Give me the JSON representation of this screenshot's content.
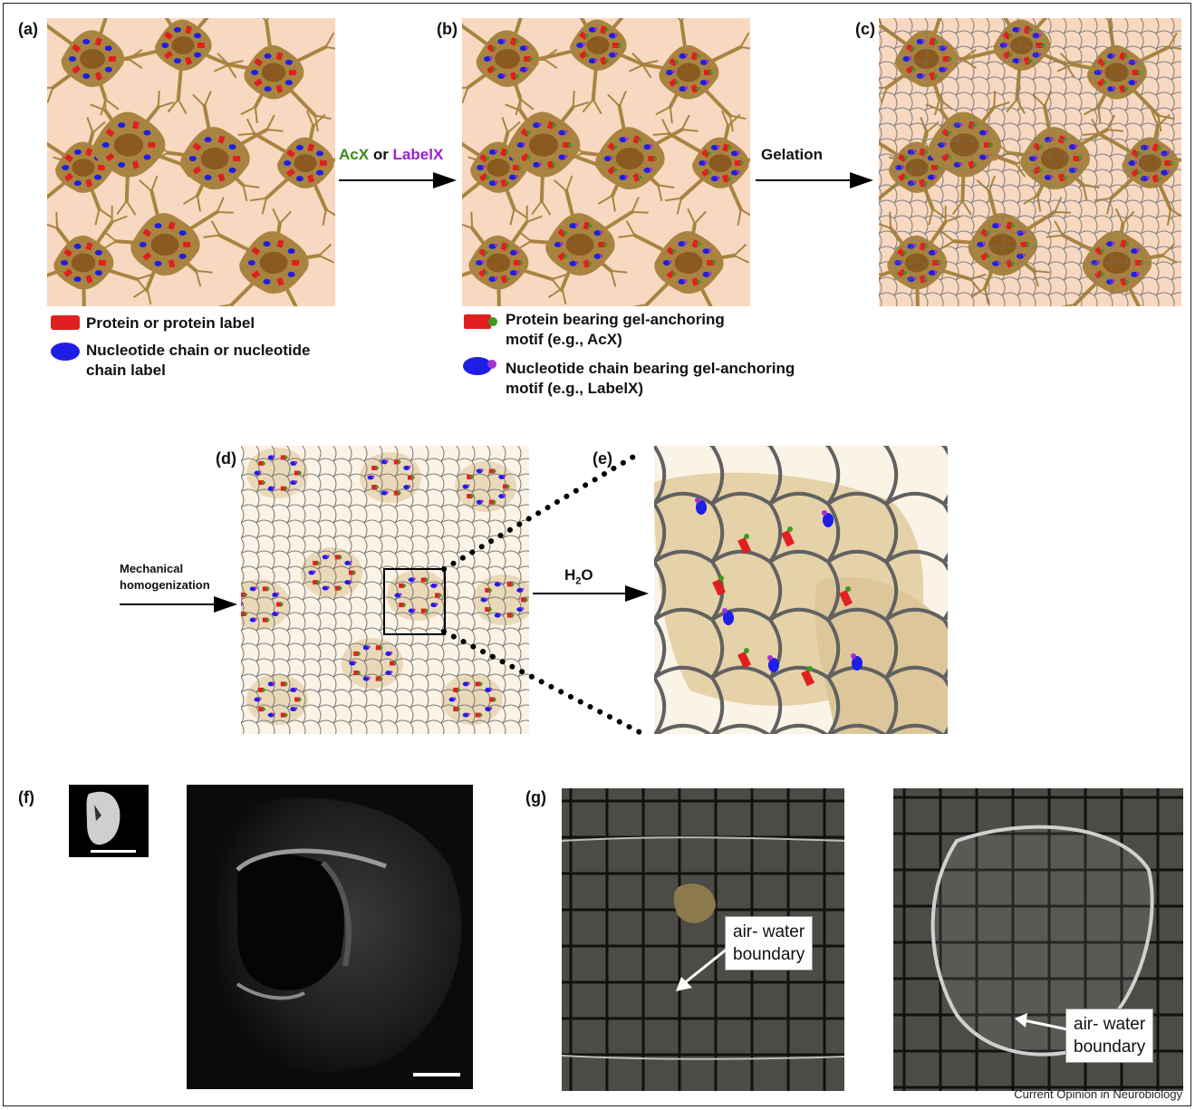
{
  "panels": {
    "a": "(a)",
    "b": "(b)",
    "c": "(c)",
    "d": "(d)",
    "e": "(e)",
    "f": "(f)",
    "g": "(g)"
  },
  "arrows": {
    "ab_part1": "AcX",
    "ab_part2": "or",
    "ab_part3": "LabelX",
    "bc": "Gelation",
    "d_in_line1": "Mechanical",
    "d_in_line2": "homogenization",
    "de_main": "H",
    "de_sub": "2",
    "de_tail": "O"
  },
  "legend_a": {
    "protein": "Protein or protein label",
    "nucleotide_line1": "Nucleotide chain or nucleotide",
    "nucleotide_line2": "chain label"
  },
  "legend_b": {
    "protein_line1": "Protein bearing gel-anchoring",
    "protein_line2": "motif (e.g., AcX)",
    "nucleotide_line1": "Nucleotide chain bearing gel-anchoring",
    "nucleotide_line2": "motif (e.g., LabelX)"
  },
  "callouts": {
    "g_left_line1": "air- water",
    "g_left_line2": "boundary",
    "g_right_line1": "air- water",
    "g_right_line2": "boundary"
  },
  "credit": "Current Opinion in Neurobiology",
  "colors": {
    "tissue_bg": "#f8d8c0",
    "cell": "#a88440",
    "nucleus": "#8a5a20",
    "protein": "#e02020",
    "nucleotide": "#1e1ee6",
    "anchor_green": "#3a9a20",
    "anchor_purple": "#a030d0",
    "acx_text": "#3a8a1a",
    "labelx_text": "#9a20c8",
    "gel_line": "#666666"
  }
}
